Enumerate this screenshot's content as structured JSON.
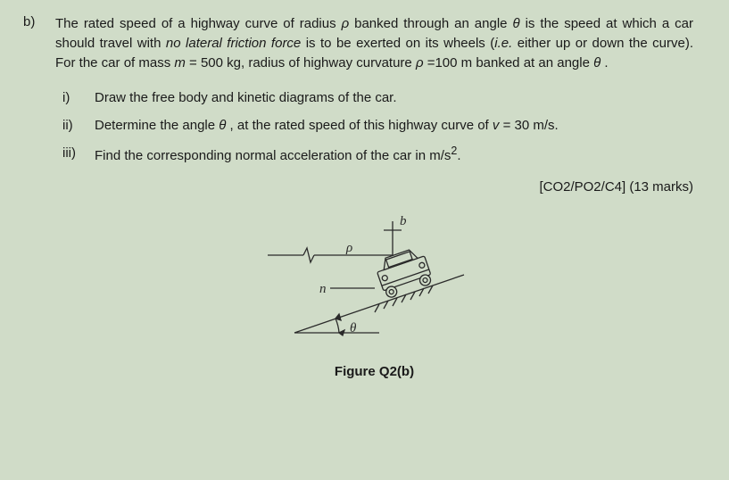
{
  "problem": {
    "label": "b)",
    "intro_html": "The rated speed of a highway curve of radius <span class='italic'>ρ</span> banked through an angle <span class='italic'>θ</span> is the speed at which a car should travel with <span class='italic'>no lateral friction force</span> is to be exerted on its wheels (<span class='italic'>i.e.</span> either up or down the curve). For the car of mass <span class='italic'>m</span> = 500 kg, radius of highway curvature <span class='italic'>ρ</span> =100 m banked at an angle <span class='italic'>θ</span> .",
    "subitems": [
      {
        "marker": "i)",
        "text": "Draw the free body and kinetic diagrams of the car."
      },
      {
        "marker": "ii)",
        "text_html": "Determine the angle <span class='italic'>θ</span> , at the rated speed of this highway curve of <span class='italic'>v</span> = 30 m/s."
      },
      {
        "marker": "iii)",
        "text_html": "Find the corresponding normal acceleration of the car in m/s<sup>2</sup>."
      }
    ],
    "marks": "[CO2/PO2/C4] (13 marks)"
  },
  "figure": {
    "caption": "Figure Q2(b)",
    "labels": {
      "b": "b",
      "rho": "ρ",
      "n": "n",
      "theta": "θ"
    },
    "colors": {
      "stroke": "#2a2a2a",
      "fill_bg": "#d0dcc8"
    }
  }
}
